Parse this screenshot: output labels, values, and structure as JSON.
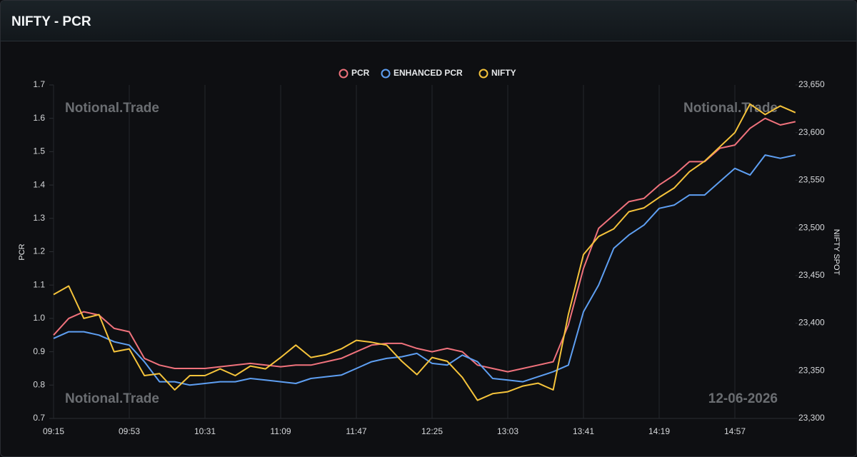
{
  "chart_data": {
    "type": "line",
    "title": "NIFTY - PCR",
    "y_label": "PCR",
    "y2_label": "NIFTY SPOT",
    "watermarks": [
      "Notional.Trade",
      "Notional.Trade",
      "Notional.Trade",
      "12-06-2026"
    ],
    "categories": [
      "09:15",
      null,
      null,
      null,
      null,
      "09:53",
      null,
      null,
      null,
      null,
      "10:31",
      null,
      null,
      null,
      null,
      "11:09",
      null,
      null,
      null,
      null,
      "11:47",
      null,
      null,
      null,
      null,
      "12:25",
      null,
      null,
      null,
      null,
      "13:03",
      null,
      null,
      null,
      null,
      "13:41",
      null,
      null,
      null,
      null,
      "14:19",
      null,
      null,
      null,
      null,
      "14:57",
      null,
      null,
      null,
      null
    ],
    "series": [
      {
        "name": "PCR",
        "color": "#f0727c",
        "axis": "y",
        "values": [
          0.95,
          1.0,
          1.02,
          1.01,
          0.97,
          0.96,
          0.88,
          0.86,
          0.85,
          0.85,
          0.85,
          0.855,
          0.86,
          0.865,
          0.86,
          0.855,
          0.86,
          0.86,
          0.87,
          0.88,
          0.9,
          0.92,
          0.925,
          0.925,
          0.91,
          0.9,
          0.91,
          0.9,
          0.86,
          0.85,
          0.84,
          0.85,
          0.86,
          0.87,
          0.98,
          1.15,
          1.27,
          1.31,
          1.35,
          1.36,
          1.4,
          1.43,
          1.47,
          1.47,
          1.51,
          1.52,
          1.57,
          1.6,
          1.58,
          1.59
        ]
      },
      {
        "name": "ENHANCED PCR",
        "color": "#5e9ff2",
        "axis": "y",
        "values": [
          0.94,
          0.96,
          0.96,
          0.95,
          0.93,
          0.92,
          0.87,
          0.81,
          0.81,
          0.8,
          0.805,
          0.81,
          0.81,
          0.82,
          0.815,
          0.81,
          0.805,
          0.82,
          0.825,
          0.83,
          0.85,
          0.87,
          0.88,
          0.885,
          0.895,
          0.865,
          0.86,
          0.89,
          0.87,
          0.82,
          0.815,
          0.81,
          0.825,
          0.84,
          0.86,
          1.02,
          1.1,
          1.21,
          1.25,
          1.28,
          1.33,
          1.34,
          1.37,
          1.37,
          1.41,
          1.45,
          1.43,
          1.49,
          1.48,
          1.49
        ]
      },
      {
        "name": "NIFTY",
        "color": "#f5c33b",
        "axis": "y2",
        "values": [
          23430,
          23439,
          23405,
          23409,
          23370,
          23373,
          23345,
          23347,
          23330,
          23345,
          23345,
          23352,
          23345,
          23355,
          23352,
          23364,
          23377,
          23364,
          23367,
          23373,
          23382,
          23380,
          23377,
          23360,
          23346,
          23364,
          23360,
          23343,
          23319,
          23326,
          23328,
          23334,
          23337,
          23330,
          23409,
          23472,
          23491,
          23499,
          23517,
          23521,
          23532,
          23542,
          23559,
          23570,
          23585,
          23600,
          23630,
          23619,
          23628,
          23621
        ]
      }
    ],
    "ylim": [
      0.7,
      1.7
    ],
    "yticks": [
      0.7,
      0.8,
      0.9,
      {
        "value": 1,
        "label": "1.0"
      },
      1.1,
      1.2,
      1.3,
      1.4,
      1.5,
      1.6,
      1.7
    ],
    "y2lim": [
      23300,
      23650
    ],
    "y2ticks": [
      {
        "value": 23300,
        "label": "23,300"
      },
      {
        "value": 23350,
        "label": "23,350"
      },
      {
        "value": 23400,
        "label": "23,400"
      },
      {
        "value": 23450,
        "label": "23,450"
      },
      {
        "value": 23500,
        "label": "23,500"
      },
      {
        "value": 23550,
        "label": "23,550"
      },
      {
        "value": 23600,
        "label": "23,600"
      },
      {
        "value": 23650,
        "label": "23,650"
      }
    ],
    "grid": true,
    "legend": "top"
  }
}
